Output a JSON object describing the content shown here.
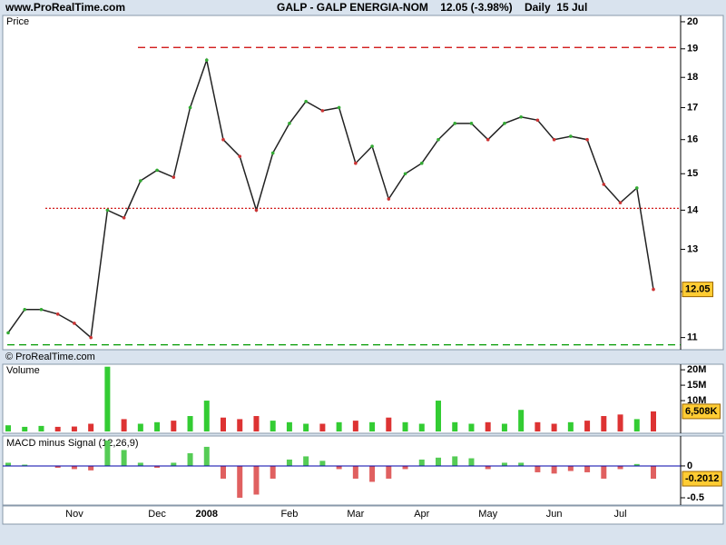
{
  "header": {
    "site": "www.ProRealTime.com",
    "title": "GALP - GALP ENERGIA-NOM    12.05 (-3.98%)    Daily  15 Jul",
    "copyright": "© ProRealTime.com"
  },
  "chart_data": [
    {
      "type": "line",
      "label": "Price",
      "log_scale": true,
      "color": "#222222",
      "values": [
        11.1,
        11.6,
        11.6,
        11.5,
        11.3,
        11.0,
        14.0,
        13.8,
        14.8,
        15.1,
        14.9,
        17.0,
        18.6,
        16.0,
        15.5,
        14.0,
        15.6,
        16.5,
        17.2,
        16.9,
        17.0,
        15.3,
        15.8,
        14.3,
        15.0,
        15.3,
        16.0,
        16.5,
        16.5,
        16.0,
        16.5,
        16.7,
        16.6,
        16.0,
        16.1,
        16.0,
        14.7,
        14.2,
        14.6,
        12.05
      ],
      "ylim": [
        10.75,
        20.24
      ],
      "yticks": [
        11,
        12,
        13,
        14,
        15,
        16,
        17,
        18,
        19,
        20
      ],
      "hlines": [
        {
          "value": 19.05,
          "color": "#cc0000",
          "style": "dashed"
        },
        {
          "value": 14.05,
          "color": "#cc0000",
          "style": "dotted"
        },
        {
          "value": 10.85,
          "color": "#009900",
          "style": "dashed"
        }
      ]
    },
    {
      "type": "bar",
      "label": "Volume",
      "up_color": "#33cc33",
      "down_color": "#dd3333",
      "values": [
        2000000,
        1500000,
        1800000,
        1500000,
        1600000,
        2500000,
        21000000,
        4000000,
        2500000,
        3000000,
        3500000,
        5000000,
        10000000,
        4500000,
        4000000,
        5000000,
        3500000,
        3000000,
        2500000,
        2500000,
        3000000,
        3500000,
        3000000,
        4500000,
        3000000,
        2500000,
        10000000,
        3000000,
        2500000,
        3000000,
        2500000,
        7000000,
        3000000,
        2500000,
        3000000,
        3500000,
        5000000,
        5500000,
        4000000,
        6508000
      ],
      "last_value_label": "6,508K",
      "ylim": [
        0,
        21800000
      ],
      "yticks": [
        {
          "value": 10000000,
          "label": "10M"
        },
        {
          "value": 15000000,
          "label": "15M"
        },
        {
          "value": 20000000,
          "label": "20M"
        }
      ]
    },
    {
      "type": "bar",
      "label": "MACD minus Signal (12,26,9)",
      "up_color": "#55cc55",
      "down_color": "#e06060",
      "zero_color": "#0000aa",
      "categories": [
        null,
        null,
        null,
        null,
        "Nov",
        null,
        null,
        null,
        null,
        "Dec",
        null,
        null,
        "2008",
        null,
        null,
        null,
        null,
        "Feb",
        null,
        null,
        null,
        "Mar",
        null,
        null,
        null,
        "Apr",
        null,
        null,
        null,
        "May",
        null,
        null,
        null,
        "Jun",
        null,
        null,
        null,
        "Jul",
        null,
        null
      ],
      "values": [
        0.05,
        0.02,
        0,
        -0.03,
        -0.05,
        -0.07,
        0.4,
        0.25,
        0.05,
        -0.03,
        0.05,
        0.2,
        0.3,
        -0.2,
        -0.5,
        -0.45,
        -0.2,
        0.1,
        0.15,
        0.08,
        -0.05,
        -0.2,
        -0.25,
        -0.2,
        -0.05,
        0.1,
        0.13,
        0.15,
        0.12,
        -0.05,
        0.05,
        0.05,
        -0.1,
        -0.12,
        -0.08,
        -0.1,
        -0.2,
        -0.05,
        0.03,
        -0.2012
      ],
      "ylim": [
        -0.6,
        0.47
      ],
      "yticks": [
        -0.5,
        0
      ]
    }
  ]
}
